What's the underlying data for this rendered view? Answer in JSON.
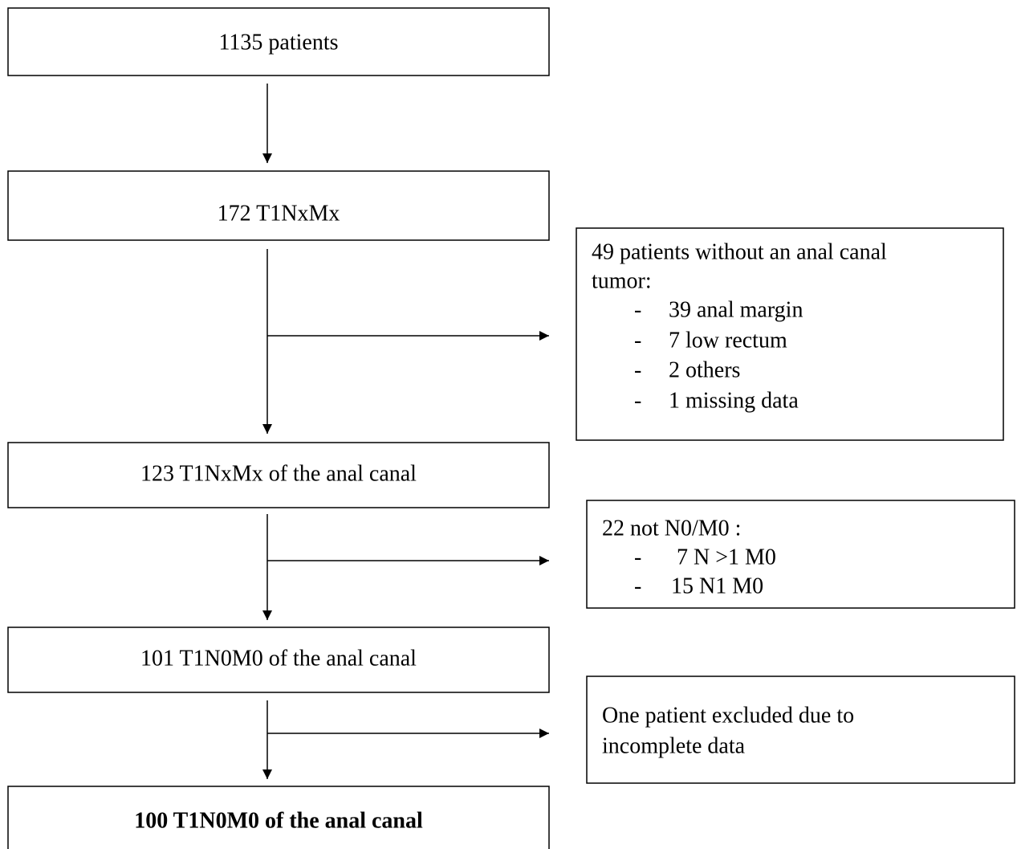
{
  "flow": [
    {
      "label": "1135 patients"
    },
    {
      "label": "172 T1NxMx"
    },
    {
      "label": "123 T1NxMx of the anal canal"
    },
    {
      "label": "101 T1N0M0 of the anal canal"
    },
    {
      "label": "100 T1N0M0 of the anal canal"
    }
  ],
  "exclusions": [
    {
      "lines": [
        "49 patients without an anal canal",
        "tumor:"
      ],
      "items": [
        "39 anal margin",
        "7 low rectum",
        "2 others",
        "1 missing data"
      ]
    },
    {
      "lines": [
        "22 not N0/M0 :"
      ],
      "items": [
        "7 N >1 M0",
        "15 N1 M0"
      ]
    },
    {
      "lines": [
        "One patient excluded due to",
        "incomplete data"
      ],
      "items": []
    }
  ]
}
